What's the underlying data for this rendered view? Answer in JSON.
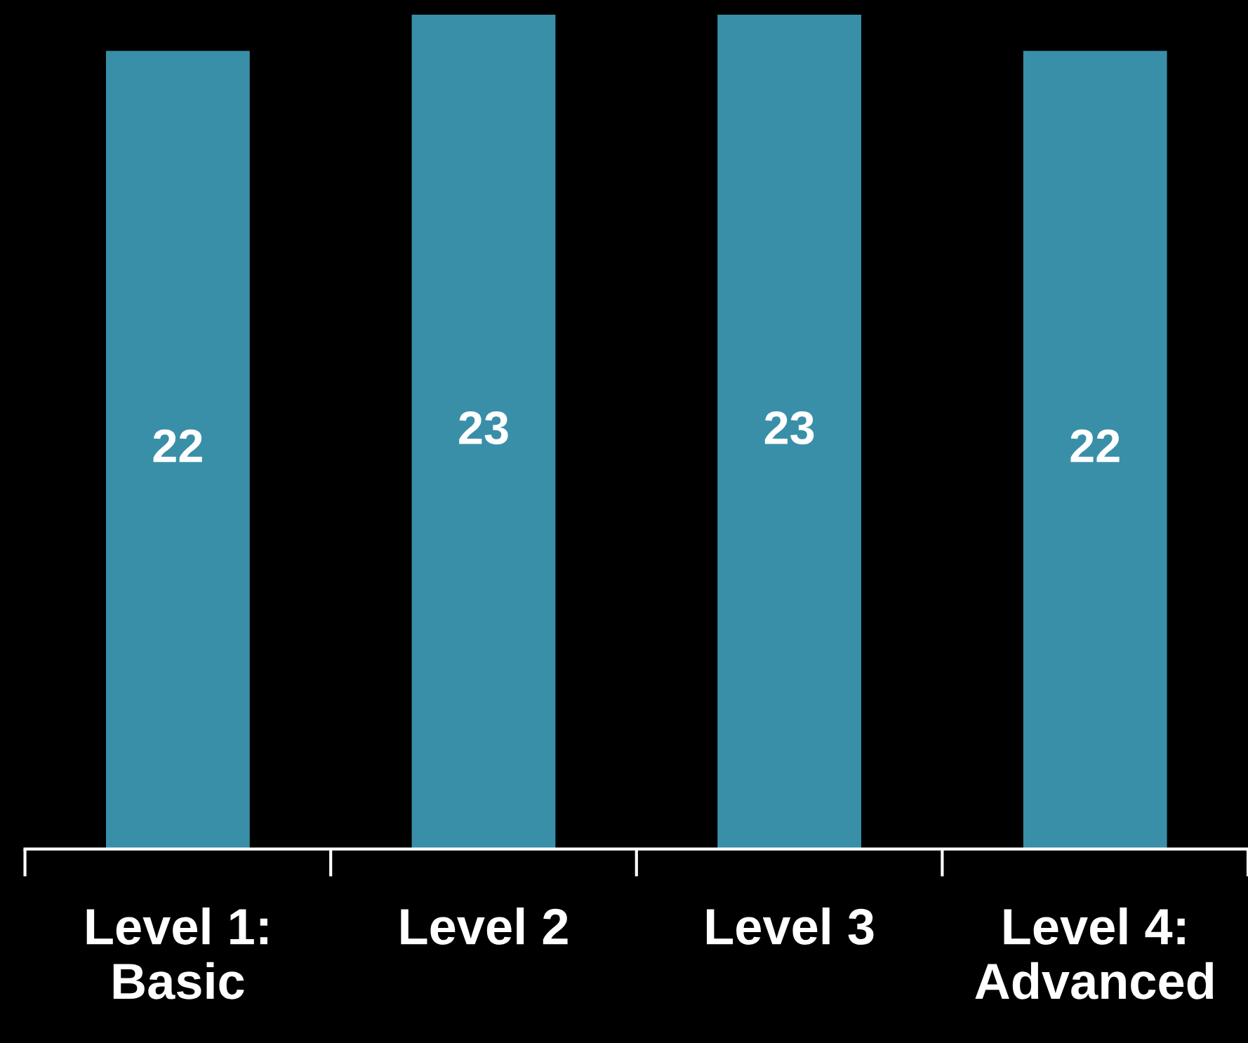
{
  "chart_data": {
    "type": "bar",
    "categories": [
      "Level 1:\nBasic",
      "Level 2",
      "Level 3",
      "Level 4:\nAdvanced"
    ],
    "values": [
      22,
      23,
      23,
      22
    ],
    "color": "#3a8fa8",
    "data_labels": true,
    "grid": false,
    "legend": false
  }
}
